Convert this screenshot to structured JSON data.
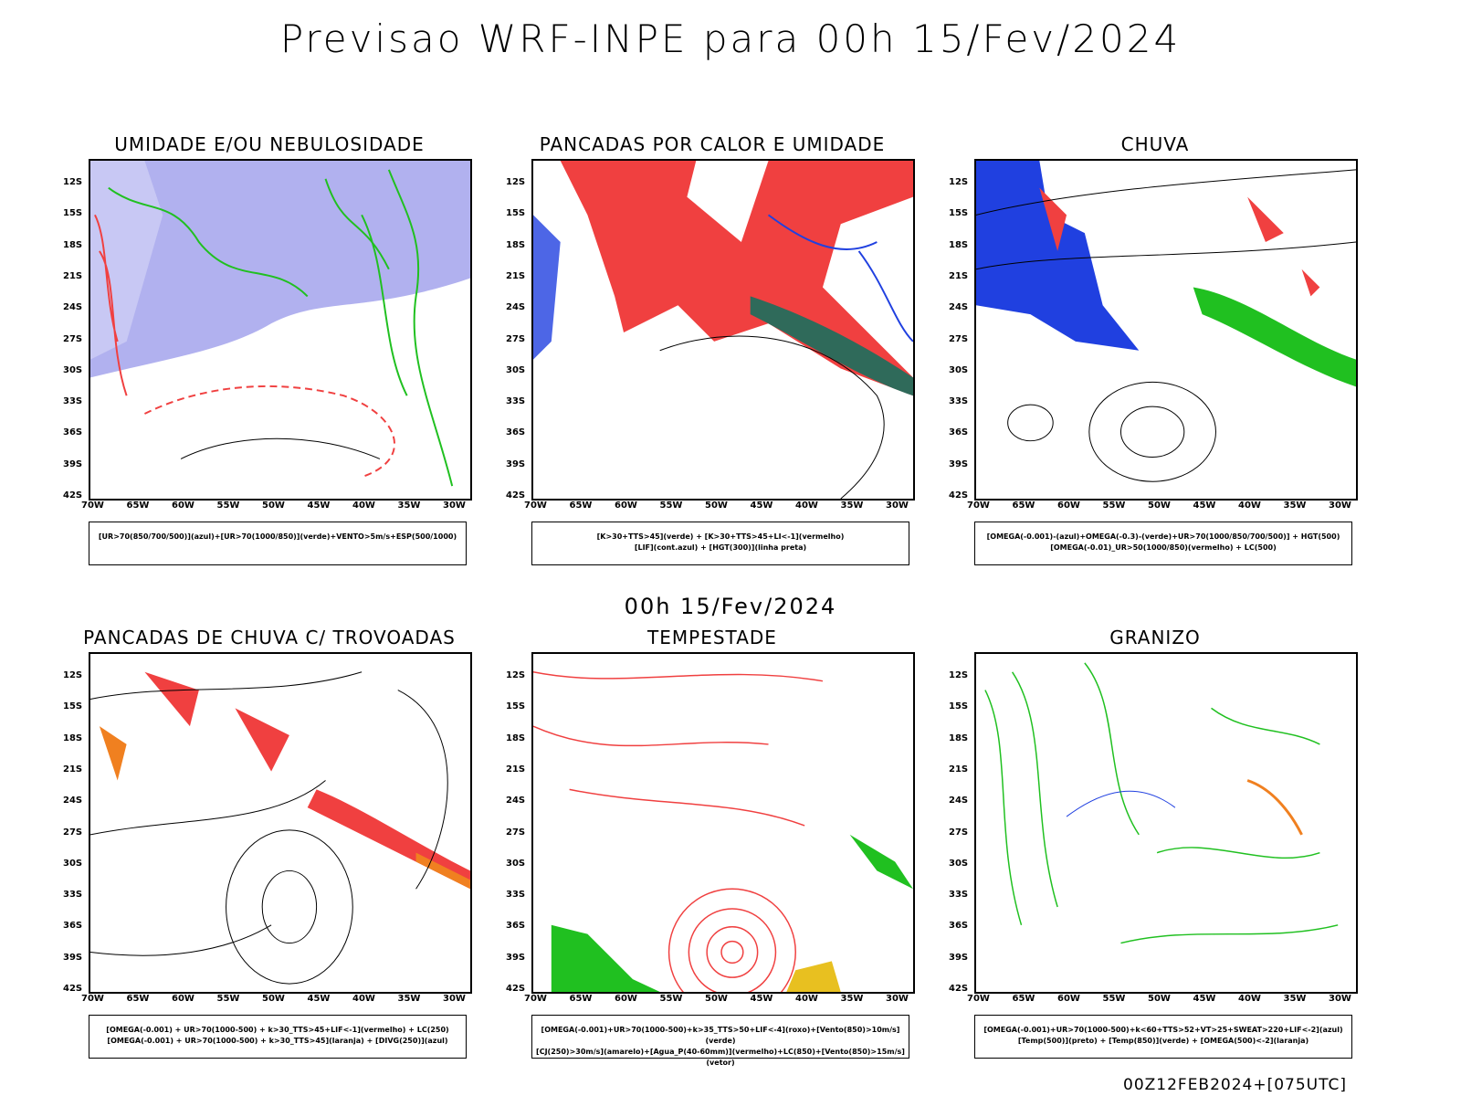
{
  "header": {
    "title": "Previsao WRF-INPE  para 00h 15/Fev/2024"
  },
  "middle": {
    "subtitle": "00h 15/Fev/2024"
  },
  "footer": {
    "run": "00Z12FEB2024+[075UTC]"
  },
  "lat_labels": [
    "12S",
    "15S",
    "18S",
    "21S",
    "24S",
    "27S",
    "30S",
    "33S",
    "36S",
    "39S",
    "42S"
  ],
  "lon_labels": [
    "70W",
    "65W",
    "60W",
    "55W",
    "50W",
    "45W",
    "40W",
    "35W",
    "30W"
  ],
  "panels": [
    {
      "title": "UMIDADE E/OU NEBULOSIDADE",
      "legend1": "[UR>70(850/700/500)](azul)+[UR>70(1000/850)](verde)+VENTO>5m/s+ESP(500/1000)",
      "legend2": ""
    },
    {
      "title": "PANCADAS POR CALOR E UMIDADE",
      "legend1": "[K>30+TTS>45](verde) + [K>30+TTS>45+LI<-1](vermelho)",
      "legend2": "[LIF](cont.azul) + [HGT(300)](linha preta)"
    },
    {
      "title": "CHUVA",
      "legend1": "[OMEGA(-0.001)-(azul)+OMEGA(-0.3)-(verde)+UR>70(1000/850/700/500)] + HGT(500)",
      "legend2": "[OMEGA(-0.01)_UR>50(1000/850)(vermelho) + LC(500)"
    },
    {
      "title": "PANCADAS DE CHUVA C/ TROVOADAS",
      "legend1": "[OMEGA(-0.001) + UR>70(1000-500) + k>30_TTS>45+LIF<-1](vermelho) + LC(250)",
      "legend2": "[OMEGA(-0.001) + UR>70(1000-500) + k>30_TTS>45](laranja) + [DIVG(250)](azul)"
    },
    {
      "title": "TEMPESTADE",
      "legend1": "[OMEGA(-0.001)+UR>70(1000-500)+k>35_TTS>50+LIF<-4](roxo)+[Vento(850)>10m/s](verde)",
      "legend2": "[CJ(250)>30m/s](amarelo)+[Agua_P(40-60mm)](vermelho)+LC(850)+[Vento(850)>15m/s](vetor)"
    },
    {
      "title": "GRANIZO",
      "legend1": "[OMEGA(-0.001)+UR>70(1000-500)+k<60+TTS>52+VT>25+SWEAT>220+LIF<-2](azul)",
      "legend2": "[Temp(500)](preto) + [Temp(850)](verde) + [OMEGA(500)<-2](laranja)"
    }
  ],
  "colors": {
    "red": "#f04040",
    "green": "#20c020",
    "blue": "#2040e0",
    "lightblue": "#9090e8",
    "orange": "#f08020"
  }
}
